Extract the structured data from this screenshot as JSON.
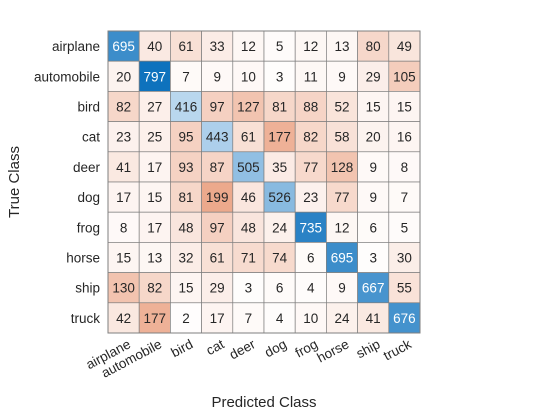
{
  "chart_data": {
    "type": "heatmap",
    "title": "",
    "xlabel": "Predicted Class",
    "ylabel": "True Class",
    "classes": [
      "airplane",
      "automobile",
      "bird",
      "cat",
      "deer",
      "dog",
      "frog",
      "horse",
      "ship",
      "truck"
    ],
    "matrix": [
      [
        695,
        40,
        61,
        33,
        12,
        5,
        12,
        13,
        80,
        49
      ],
      [
        20,
        797,
        7,
        9,
        10,
        3,
        11,
        9,
        29,
        105
      ],
      [
        82,
        27,
        416,
        97,
        127,
        81,
        88,
        52,
        15,
        15
      ],
      [
        23,
        25,
        95,
        443,
        61,
        177,
        82,
        58,
        20,
        16
      ],
      [
        41,
        17,
        93,
        87,
        505,
        35,
        77,
        128,
        9,
        8
      ],
      [
        17,
        15,
        81,
        199,
        46,
        526,
        23,
        77,
        9,
        7
      ],
      [
        8,
        17,
        48,
        97,
        48,
        24,
        735,
        12,
        6,
        5
      ],
      [
        15,
        13,
        32,
        61,
        71,
        74,
        6,
        695,
        3,
        30
      ],
      [
        130,
        82,
        15,
        29,
        3,
        6,
        4,
        9,
        667,
        55
      ],
      [
        42,
        177,
        2,
        17,
        7,
        4,
        10,
        24,
        41,
        676
      ]
    ],
    "colors": {
      "diagonal_low": "#d7e8f7",
      "diagonal_high": "#0e72bd",
      "off_low": "#ffffff",
      "off_high": "#d95319",
      "grid": "#7f7f7f",
      "text_dark": "#262626",
      "text_light": "#ffffff"
    }
  }
}
